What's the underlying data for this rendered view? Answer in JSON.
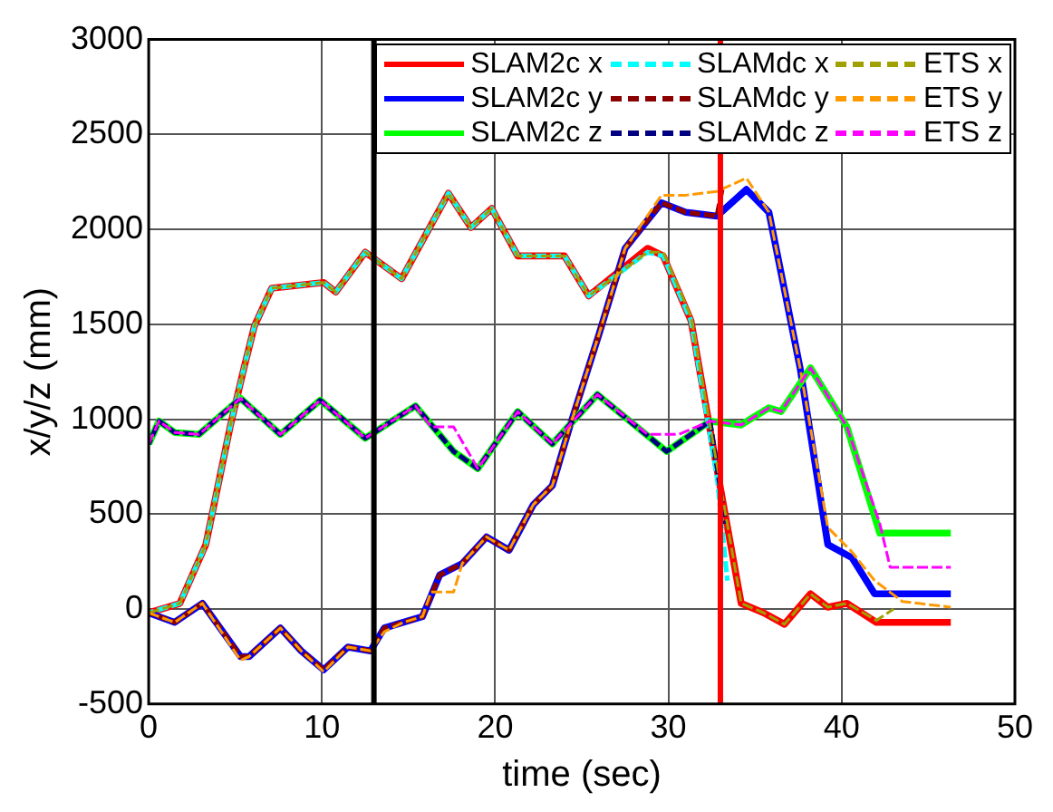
{
  "chart_data": {
    "type": "line",
    "xlabel": "time (sec)",
    "ylabel": "x/y/z (mm)",
    "xlim": [
      0,
      50
    ],
    "xticks": [
      0,
      10,
      20,
      30,
      40,
      50
    ],
    "ylim": [
      -500,
      3000
    ],
    "yticks": [
      -500,
      0,
      500,
      1000,
      1500,
      2000,
      2500,
      3000
    ],
    "grid": true,
    "legend": "top right",
    "marker": "none",
    "ref_lines": [
      {
        "axis": "x",
        "value": 13,
        "color": "#000000"
      },
      {
        "axis": "x",
        "value": 33,
        "color": "#ff0000"
      }
    ],
    "series": [
      {
        "name": "SLAM2c x",
        "color": "#ff0000",
        "line_style": "solid",
        "x": [
          0,
          1.8,
          3.3,
          4.7,
          5.5,
          6.1,
          7.1,
          10.1,
          10.8,
          12.5,
          14.6,
          17.3,
          18.6,
          19.8,
          21.3,
          24.0,
          25.4,
          28.8,
          29.7,
          31.3,
          32.8,
          34.2,
          35.5,
          36.7,
          38.2,
          39.2,
          40.3,
          42.0,
          46.3
        ],
        "values": [
          -20,
          30,
          340,
          960,
          1270,
          1490,
          1690,
          1720,
          1670,
          1880,
          1740,
          2190,
          2010,
          2110,
          1860,
          1860,
          1650,
          1900,
          1860,
          1520,
          740,
          30,
          -20,
          -80,
          80,
          10,
          30,
          -70,
          -70
        ]
      },
      {
        "name": "SLAM2c y",
        "color": "#0000ff",
        "line_style": "solid",
        "x": [
          0,
          1.5,
          3.1,
          5.3,
          5.8,
          7.6,
          8.8,
          10.1,
          11.5,
          12.8,
          13.6,
          14.7,
          15.8,
          16.8,
          18.1,
          19.5,
          20.8,
          22.2,
          23.3,
          24.3,
          26.0,
          27.5,
          29.6,
          31.0,
          32.8,
          34.5,
          35.8,
          37.6,
          39.2,
          40.6,
          41.9,
          46.3
        ],
        "values": [
          -20,
          -70,
          30,
          -250,
          -250,
          -100,
          -220,
          -320,
          -200,
          -220,
          -100,
          -70,
          -40,
          180,
          240,
          380,
          310,
          550,
          650,
          960,
          1450,
          1900,
          2140,
          2090,
          2070,
          2210,
          2090,
          1270,
          340,
          270,
          80,
          80
        ]
      },
      {
        "name": "SLAM2c z",
        "color": "#00ff00",
        "line_style": "solid",
        "x": [
          0,
          0.6,
          1.5,
          2.9,
          5.3,
          7.6,
          9.9,
          12.5,
          15.4,
          17.6,
          19.0,
          21.3,
          23.3,
          25.9,
          29.9,
          32.4,
          34.2,
          35.8,
          36.5,
          38.2,
          40.3,
          42.2,
          46.3
        ],
        "values": [
          870,
          990,
          930,
          920,
          1110,
          920,
          1100,
          900,
          1070,
          830,
          740,
          1040,
          870,
          1130,
          830,
          990,
          970,
          1060,
          1040,
          1270,
          960,
          400,
          400
        ]
      },
      {
        "name": "SLAMdc x",
        "color": "#00ffff",
        "line_style": "dashed",
        "x": [
          0,
          1.8,
          3.3,
          4.7,
          5.5,
          6.1,
          7.1,
          10.1,
          10.8,
          12.5,
          14.6,
          17.3,
          18.6,
          19.8,
          21.3,
          24.0,
          25.4,
          28.8,
          29.7,
          31.3,
          32.8,
          33.4
        ],
        "values": [
          -20,
          30,
          340,
          960,
          1270,
          1490,
          1690,
          1720,
          1670,
          1880,
          1740,
          2190,
          2010,
          2110,
          1860,
          1860,
          1650,
          1880,
          1860,
          1520,
          700,
          150
        ]
      },
      {
        "name": "SLAMdc y",
        "color": "#8b0000",
        "line_style": "dashed",
        "x": [
          0,
          1.5,
          3.1,
          5.3,
          5.8,
          7.6,
          8.8,
          10.1,
          11.5,
          12.8,
          13.6,
          14.7,
          15.8,
          16.8,
          18.1,
          19.5,
          20.8,
          22.2,
          23.3,
          24.3,
          26.0,
          27.5,
          29.6,
          31.0,
          32.8,
          33.1
        ],
        "values": [
          -20,
          -70,
          30,
          -250,
          -250,
          -100,
          -220,
          -320,
          -200,
          -220,
          -100,
          -70,
          -40,
          180,
          240,
          380,
          310,
          550,
          650,
          960,
          1450,
          1900,
          2140,
          2090,
          2070,
          2210
        ]
      },
      {
        "name": "SLAMdc z",
        "color": "#000080",
        "line_style": "dashed",
        "x": [
          0,
          0.6,
          1.5,
          2.9,
          5.3,
          7.6,
          9.9,
          12.5,
          15.4,
          17.6,
          19.0,
          21.3,
          23.3,
          25.9,
          29.9,
          32.4,
          33.3
        ],
        "values": [
          870,
          990,
          930,
          920,
          1110,
          920,
          1100,
          900,
          1070,
          830,
          740,
          1040,
          870,
          1130,
          830,
          990,
          450
        ]
      },
      {
        "name": "ETS x",
        "color": "#a0a000",
        "line_style": "dashed",
        "x": [
          0,
          1.8,
          3.3,
          4.7,
          5.5,
          6.1,
          7.1,
          10.1,
          10.8,
          12.5,
          14.6,
          17.3,
          18.6,
          19.8,
          21.3,
          24.0,
          25.4,
          28.8,
          29.7,
          31.3,
          32.8,
          34.2,
          35.5,
          36.7,
          38.2,
          39.2,
          40.3,
          42.0,
          43.0
        ],
        "values": [
          -20,
          30,
          340,
          960,
          1270,
          1490,
          1690,
          1720,
          1670,
          1880,
          1740,
          2190,
          2010,
          2110,
          1860,
          1860,
          1650,
          1880,
          1880,
          1540,
          760,
          30,
          -20,
          -80,
          80,
          10,
          30,
          -60,
          0
        ]
      },
      {
        "name": "ETS y",
        "color": "#ff9900",
        "line_style": "dashed",
        "x": [
          0,
          1.5,
          3.1,
          5.3,
          5.8,
          7.6,
          8.8,
          10.1,
          11.5,
          12.8,
          13.6,
          14.7,
          15.8,
          16.3,
          17.6,
          18.1,
          19.5,
          20.8,
          22.2,
          23.3,
          24.3,
          26.0,
          27.5,
          29.6,
          31.0,
          32.8,
          34.5,
          35.8,
          37.6,
          39.2,
          40.6,
          41.9,
          43.5,
          46.3
        ],
        "values": [
          -20,
          -70,
          30,
          -270,
          -250,
          -100,
          -220,
          -330,
          -200,
          -220,
          -120,
          -70,
          -40,
          90,
          90,
          240,
          380,
          310,
          550,
          650,
          960,
          1450,
          1900,
          2180,
          2180,
          2200,
          2270,
          2090,
          1270,
          430,
          300,
          150,
          40,
          10
        ]
      },
      {
        "name": "ETS z",
        "color": "#ff00ff",
        "line_style": "dashed",
        "x": [
          0,
          0.6,
          1.5,
          2.9,
          5.3,
          7.6,
          9.9,
          12.5,
          15.4,
          16.3,
          17.6,
          19.0,
          21.3,
          23.3,
          25.9,
          28.8,
          30.6,
          32.4,
          34.2,
          35.8,
          36.5,
          38.2,
          40.3,
          42.2,
          42.8,
          46.3
        ],
        "values": [
          870,
          990,
          930,
          920,
          1110,
          920,
          1100,
          900,
          1070,
          960,
          960,
          740,
          1040,
          870,
          1130,
          920,
          920,
          990,
          970,
          1060,
          1040,
          1270,
          960,
          450,
          220,
          220
        ]
      }
    ]
  }
}
